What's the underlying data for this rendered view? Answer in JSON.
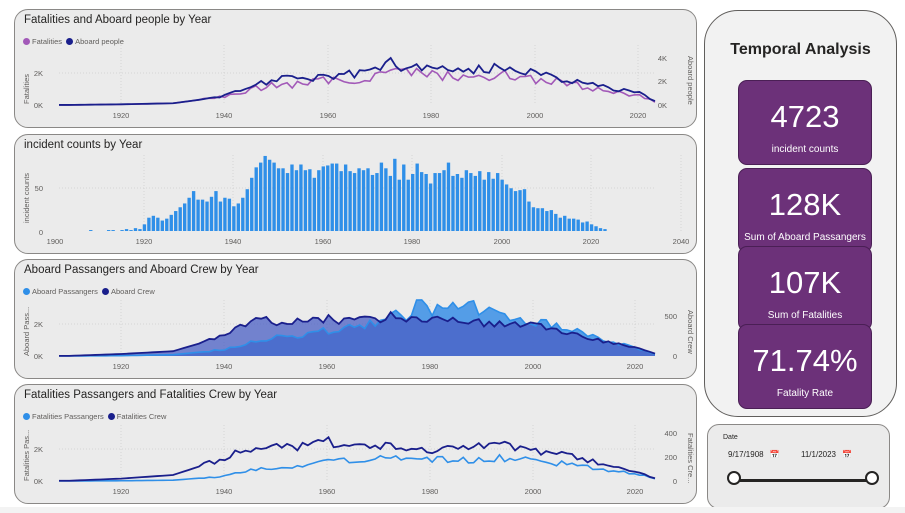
{
  "panels": {
    "p1": {
      "title": "Fatalities and Aboard people by Year",
      "legend": [
        "Fatalities",
        "Aboard people"
      ],
      "y_left_label": "Fatalities",
      "y_right_label": "Aboard people",
      "y_left_ticks": [
        "2K",
        "0K"
      ],
      "y_right_ticks": [
        "4K",
        "2K",
        "0K"
      ],
      "x_ticks": [
        "1920",
        "1940",
        "1960",
        "1980",
        "2000",
        "2020"
      ]
    },
    "p2": {
      "title": "incident counts by Year",
      "y_label": "incident counts",
      "y_ticks": [
        "50",
        "0"
      ],
      "x_ticks": [
        "1900",
        "1920",
        "1940",
        "1960",
        "1980",
        "2000",
        "2020",
        "2040"
      ]
    },
    "p3": {
      "title": "Aboard Passangers and Aboard Crew by Year",
      "legend": [
        "Aboard Passangers",
        "Aboard Crew"
      ],
      "y_left_label": "Aboard Pass...",
      "y_right_label": "Aboard Crew",
      "y_left_ticks": [
        "2K",
        "0K"
      ],
      "y_right_ticks": [
        "500",
        "0"
      ],
      "x_ticks": [
        "1920",
        "1940",
        "1960",
        "1980",
        "2000",
        "2020"
      ]
    },
    "p4": {
      "title": "Fatalities Passangers and Fatalities Crew by Year",
      "legend": [
        "Fatalities Passangers",
        "Fatalities Crew"
      ],
      "y_left_label": "Fatalities Pas...",
      "y_right_label": "Fatalities Cre...",
      "y_left_ticks": [
        "2K",
        "0K"
      ],
      "y_right_ticks": [
        "400",
        "200",
        "0"
      ],
      "x_ticks": [
        "1920",
        "1940",
        "1960",
        "1980",
        "2000",
        "2020"
      ]
    }
  },
  "temporal": {
    "title": "Temporal Analysis",
    "cards": [
      {
        "value": "4723",
        "label": "incident counts"
      },
      {
        "value": "128K",
        "label": "Sum of Aboard Passangers"
      },
      {
        "value": "107K",
        "label": "Sum of Fatalities"
      },
      {
        "value": "71.74%",
        "label": "Fatality Rate"
      }
    ]
  },
  "date_slicer": {
    "label": "Date",
    "start": "9/17/1908",
    "end": "11/1/2023",
    "cal_icon": "📅"
  },
  "colors": {
    "purple": "#a259b8",
    "navy": "#1a1f8c",
    "blue": "#2f8fe8",
    "lightblue": "#3a8fe6",
    "card": "#6c3179"
  },
  "chart_data": [
    {
      "type": "line",
      "title": "Fatalities and Aboard people by Year",
      "x_range": [
        1908,
        2023
      ],
      "series": [
        {
          "name": "Fatalities",
          "years": [
            1910,
            1920,
            1930,
            1935,
            1940,
            1945,
            1950,
            1955,
            1960,
            1965,
            1970,
            1972,
            1975,
            1980,
            1985,
            1990,
            1995,
            2000,
            2005,
            2010,
            2015,
            2020,
            2023
          ],
          "values": [
            3,
            40,
            110,
            320,
            500,
            1000,
            1250,
            1300,
            1550,
            1600,
            1900,
            2500,
            2000,
            1950,
            1700,
            1800,
            1900,
            1600,
            1400,
            1100,
            800,
            600,
            200
          ]
        },
        {
          "name": "Aboard people",
          "years": [
            1910,
            1920,
            1930,
            1935,
            1940,
            1945,
            1950,
            1955,
            1960,
            1965,
            1970,
            1972,
            1975,
            1980,
            1985,
            1990,
            1995,
            2000,
            2005,
            2010,
            2015,
            2020,
            2023
          ],
          "values": [
            5,
            60,
            150,
            450,
            800,
            1700,
            2200,
            2300,
            2600,
            2700,
            3200,
            3700,
            3300,
            3200,
            3000,
            3100,
            3300,
            2800,
            2300,
            1900,
            1400,
            1000,
            400
          ]
        }
      ]
    },
    {
      "type": "bar",
      "title": "incident counts by Year",
      "x_range": [
        1900,
        2040
      ],
      "ylim": [
        0,
        80
      ],
      "years": [
        1908,
        1912,
        1913,
        1915,
        1916,
        1917,
        1918,
        1919,
        1920,
        1921,
        1922,
        1923,
        1924,
        1925,
        1926,
        1927,
        1928,
        1929,
        1930,
        1931,
        1932,
        1933,
        1934,
        1935,
        1936,
        1937,
        1938,
        1939,
        1940,
        1941,
        1942,
        1943,
        1944,
        1945,
        1946,
        1947,
        1948,
        1949,
        1950,
        1951,
        1952,
        1953,
        1954,
        1955,
        1956,
        1957,
        1958,
        1959,
        1960,
        1961,
        1962,
        1963,
        1964,
        1965,
        1966,
        1967,
        1968,
        1969,
        1970,
        1971,
        1972,
        1973,
        1974,
        1975,
        1976,
        1977,
        1978,
        1979,
        1980,
        1981,
        1982,
        1983,
        1984,
        1985,
        1986,
        1987,
        1988,
        1989,
        1990,
        1991,
        1992,
        1993,
        1994,
        1995,
        1996,
        1997,
        1998,
        1999,
        2000,
        2001,
        2002,
        2003,
        2004,
        2005,
        2006,
        2007,
        2008,
        2009,
        2010,
        2011,
        2012,
        2013,
        2014,
        2015,
        2016,
        2017,
        2018,
        2019,
        2020,
        2021,
        2022,
        2023
      ],
      "values": [
        1,
        1,
        1,
        1,
        2,
        1,
        3,
        2,
        7,
        14,
        16,
        14,
        11,
        13,
        17,
        21,
        25,
        29,
        35,
        42,
        33,
        33,
        31,
        36,
        42,
        31,
        35,
        34,
        26,
        29,
        35,
        44,
        56,
        67,
        72,
        79,
        75,
        72,
        66,
        66,
        61,
        70,
        64,
        70,
        64,
        65,
        56,
        64,
        68,
        69,
        71,
        71,
        63,
        70,
        63,
        61,
        66,
        64,
        66,
        59,
        61,
        72,
        66,
        58,
        76,
        54,
        70,
        54,
        60,
        71,
        62,
        60,
        50,
        61,
        61,
        64,
        72,
        58,
        60,
        56,
        64,
        61,
        58,
        63,
        54,
        62,
        55,
        61,
        54,
        49,
        45,
        42,
        43,
        44,
        31,
        25,
        24,
        24,
        21,
        22,
        18,
        14,
        16,
        13,
        13,
        12,
        9,
        10,
        7,
        5,
        3,
        2
      ]
    },
    {
      "type": "area",
      "title": "Aboard Passangers and Aboard Crew by Year",
      "x_range": [
        1908,
        2023
      ],
      "series": [
        {
          "name": "Aboard Passangers",
          "years": [
            1910,
            1920,
            1930,
            1940,
            1945,
            1950,
            1955,
            1960,
            1965,
            1970,
            1972,
            1975,
            1978,
            1980,
            1983,
            1985,
            1988,
            1990,
            1995,
            2000,
            2005,
            2010,
            2015,
            2020,
            2023
          ],
          "values": [
            0,
            20,
            80,
            400,
            900,
            1200,
            1300,
            1600,
            1800,
            2200,
            3000,
            2600,
            3300,
            2800,
            3200,
            2900,
            3300,
            2700,
            2600,
            2200,
            1800,
            1300,
            900,
            400,
            100
          ]
        },
        {
          "name": "Aboard Crew",
          "years": [
            1910,
            1920,
            1930,
            1940,
            1945,
            1950,
            1955,
            1960,
            1965,
            1970,
            1972,
            1975,
            1978,
            1980,
            1983,
            1985,
            1988,
            1990,
            1995,
            2000,
            2005,
            2010,
            2015,
            2020,
            2023
          ],
          "values": [
            2,
            25,
            60,
            250,
            450,
            430,
            420,
            470,
            430,
            460,
            520,
            430,
            480,
            460,
            420,
            450,
            430,
            400,
            420,
            400,
            300,
            230,
            160,
            90,
            30
          ]
        }
      ]
    },
    {
      "type": "line",
      "title": "Fatalities Passangers and Fatalities Crew by Year",
      "x_range": [
        1908,
        2023
      ],
      "series": [
        {
          "name": "Fatalities Passangers",
          "years": [
            1910,
            1920,
            1930,
            1940,
            1945,
            1950,
            1955,
            1960,
            1965,
            1970,
            1975,
            1980,
            1985,
            1990,
            1995,
            2000,
            2005,
            2010,
            2015,
            2020,
            2023
          ],
          "values": [
            0,
            15,
            50,
            300,
            700,
            900,
            1000,
            1200,
            1300,
            1400,
            1500,
            1350,
            1300,
            1400,
            1450,
            1250,
            1100,
            900,
            650,
            400,
            150
          ]
        },
        {
          "name": "Fatalities Crew",
          "years": [
            1910,
            1920,
            1930,
            1940,
            1945,
            1950,
            1955,
            1960,
            1965,
            1970,
            1975,
            1980,
            1985,
            1990,
            1995,
            2000,
            2005,
            2010,
            2015,
            2020,
            2023
          ],
          "values": [
            2,
            20,
            50,
            190,
            280,
            300,
            290,
            330,
            290,
            300,
            290,
            260,
            270,
            280,
            290,
            260,
            220,
            170,
            120,
            70,
            25
          ]
        }
      ]
    }
  ]
}
